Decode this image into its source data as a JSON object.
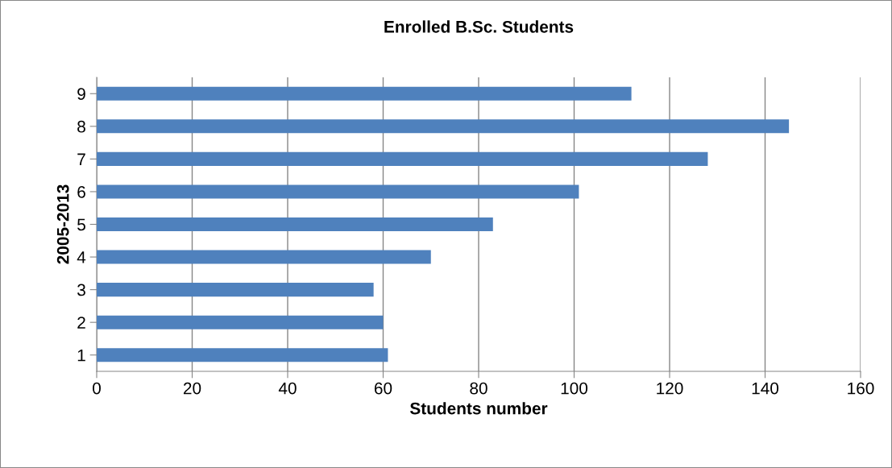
{
  "chart_data": {
    "type": "bar",
    "orientation": "horizontal",
    "title": "Enrolled B.Sc. Students",
    "xlabel": "Students number",
    "ylabel": "2005-2013",
    "categories": [
      "9",
      "8",
      "7",
      "6",
      "5",
      "4",
      "3",
      "2",
      "1"
    ],
    "values": [
      112,
      145,
      128,
      101,
      83,
      70,
      58,
      60,
      61
    ],
    "color": "#4f81bd",
    "xlim": [
      0,
      160
    ],
    "xticks": [
      0,
      20,
      40,
      60,
      80,
      100,
      120,
      140,
      160
    ],
    "grid": "x"
  }
}
